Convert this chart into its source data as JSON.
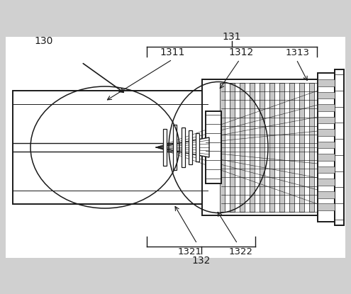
{
  "bg_color": "#d0d0d0",
  "draw_color": "#1a1a1a",
  "white": "#ffffff",
  "light_gray": "#c8c8c8",
  "mid_gray": "#b0b0b0"
}
